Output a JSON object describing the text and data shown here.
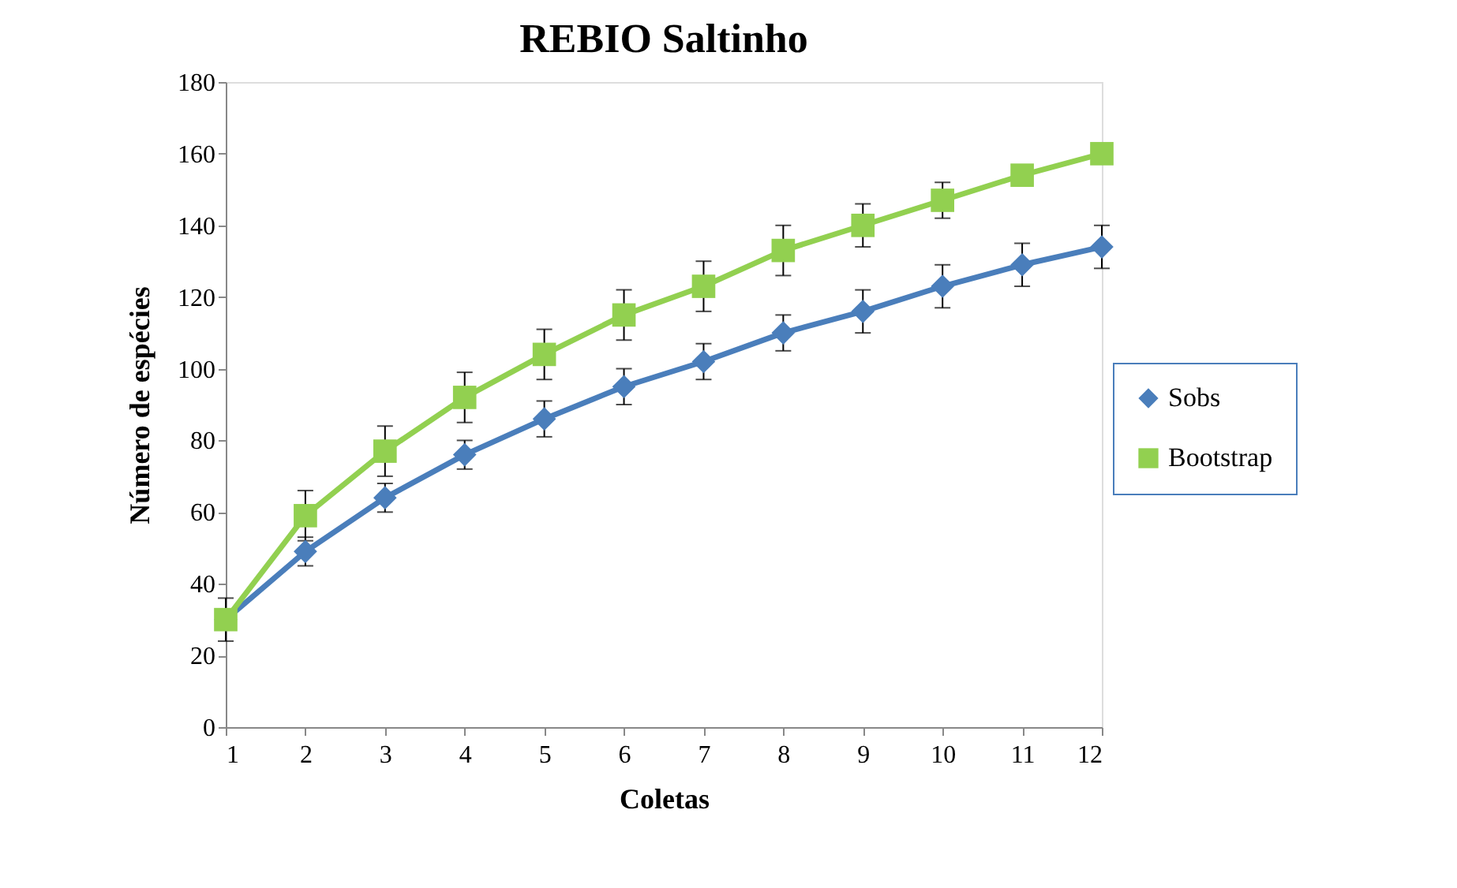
{
  "chart_data": {
    "type": "line",
    "title": "REBIO Saltinho",
    "xlabel": "Coletas",
    "ylabel": "Número de espécies",
    "x": [
      1,
      2,
      3,
      4,
      5,
      6,
      7,
      8,
      9,
      10,
      11,
      12
    ],
    "series": [
      {
        "name": "Sobs",
        "color": "#4a7ebb",
        "marker": "diamond",
        "values": [
          30,
          49,
          64,
          76,
          86,
          95,
          102,
          110,
          116,
          123,
          129,
          134
        ],
        "errors": [
          null,
          4,
          4,
          4,
          5,
          5,
          5,
          5,
          6,
          6,
          6,
          6
        ]
      },
      {
        "name": "Bootstrap",
        "color": "#92d050",
        "marker": "square",
        "values": [
          30,
          59,
          77,
          92,
          104,
          115,
          123,
          133,
          140,
          147,
          154,
          160
        ],
        "errors": [
          6,
          7,
          7,
          7,
          7,
          7,
          7,
          7,
          6,
          5,
          null,
          null
        ]
      }
    ],
    "xlim": [
      1,
      12
    ],
    "xticks": [
      1,
      2,
      3,
      4,
      5,
      6,
      7,
      8,
      9,
      10,
      11,
      12
    ],
    "ylim": [
      0,
      180
    ],
    "yticks": [
      0,
      20,
      40,
      60,
      80,
      100,
      120,
      140,
      160,
      180
    ],
    "grid": false,
    "legend": "right",
    "line_style": "solid"
  }
}
